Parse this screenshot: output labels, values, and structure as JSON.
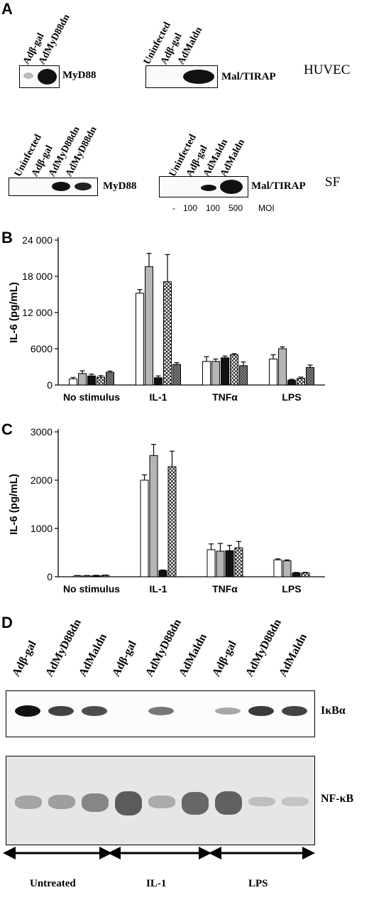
{
  "panel_a": {
    "letter": "A",
    "huvec_label": "HUVEC",
    "sf_label": "SF",
    "huvec_myd88": {
      "lanes": [
        "Adβ-gal",
        "AdMyD88dn"
      ],
      "protein": "MyD88"
    },
    "huvec_mal": {
      "lanes": [
        "Uninfected",
        "Adβ-gal",
        "AdMaldn"
      ],
      "protein": "Mal/TIRAP"
    },
    "sf_myd88": {
      "lanes": [
        "Uninfected",
        "Adβ-gal",
        "AdMyD88dn",
        "AdMyD88dn"
      ],
      "protein": "MyD88"
    },
    "sf_mal": {
      "lanes": [
        "Uninfected",
        "Adβ-gal",
        "AdMaldn",
        "AdMaldn"
      ],
      "protein": "Mal/TIRAP"
    },
    "moi_values": [
      "-",
      "100",
      "100",
      "500"
    ],
    "moi_unit": "MOI"
  },
  "panel_b": {
    "letter": "B"
  },
  "panel_c": {
    "letter": "C"
  },
  "panel_d": {
    "letter": "D",
    "lanes": [
      "Adβ-gal",
      "AdMyD88dn",
      "AdMaldn",
      "Adβ-gal",
      "AdMyD88dn",
      "AdMaldn",
      "Adβ-gal",
      "AdMyD88dn",
      "AdMaldn"
    ],
    "ikb_label": "IκBα",
    "nfkb_label": "NF-κB",
    "group_labels": [
      "Untreated",
      "IL-1",
      "LPS"
    ],
    "ikb_intensity": [
      1.0,
      0.75,
      0.7,
      0.0,
      0.5,
      0.0,
      0.25,
      0.8,
      0.75
    ],
    "nfkb_intensity": [
      0.35,
      0.4,
      0.6,
      0.95,
      0.3,
      0.85,
      0.9,
      0.15,
      0.1
    ]
  },
  "chart_data": [
    {
      "type": "bar",
      "title": "",
      "xlabel": "",
      "ylabel": "IL-6 (pg/mL)",
      "ylim": [
        0,
        24000
      ],
      "yticks": [
        "0",
        "6000",
        "12 000",
        "18 000",
        "24 000"
      ],
      "categories": [
        "No stimulus",
        "IL-1",
        "TNFα",
        "LPS"
      ],
      "series": [
        {
          "fill": "white",
          "values": [
            1000,
            15200,
            3900,
            4300
          ],
          "errors": [
            250,
            600,
            800,
            700
          ]
        },
        {
          "fill": "gray",
          "values": [
            1900,
            19600,
            3900,
            6000
          ],
          "errors": [
            450,
            2200,
            400,
            300
          ]
        },
        {
          "fill": "black",
          "values": [
            1500,
            1200,
            4500,
            800
          ],
          "errors": [
            300,
            300,
            300,
            150
          ]
        },
        {
          "fill": "crosshatch",
          "values": [
            1300,
            17100,
            5000,
            1100
          ],
          "errors": [
            250,
            4500,
            200,
            200
          ]
        },
        {
          "fill": "dark-crosshatch",
          "values": [
            2100,
            3400,
            3200,
            2900
          ],
          "errors": [
            200,
            300,
            600,
            400
          ]
        }
      ]
    },
    {
      "type": "bar",
      "title": "",
      "xlabel": "",
      "ylabel": "IL-6 (pg/mL)",
      "ylim": [
        0,
        3000
      ],
      "yticks": [
        "0",
        "1000",
        "2000",
        "3000"
      ],
      "categories": [
        "No stimulus",
        "IL-1",
        "TNFα",
        "LPS"
      ],
      "series": [
        {
          "fill": "white",
          "values": [
            20,
            2000,
            560,
            350
          ],
          "errors": [
            5,
            110,
            120,
            20
          ]
        },
        {
          "fill": "gray",
          "values": [
            20,
            2510,
            530,
            330
          ],
          "errors": [
            5,
            230,
            160,
            20
          ]
        },
        {
          "fill": "black",
          "values": [
            25,
            130,
            540,
            80
          ],
          "errors": [
            5,
            10,
            110,
            10
          ]
        },
        {
          "fill": "crosshatch",
          "values": [
            30,
            2280,
            600,
            80
          ],
          "errors": [
            5,
            320,
            130,
            10
          ]
        }
      ]
    }
  ]
}
